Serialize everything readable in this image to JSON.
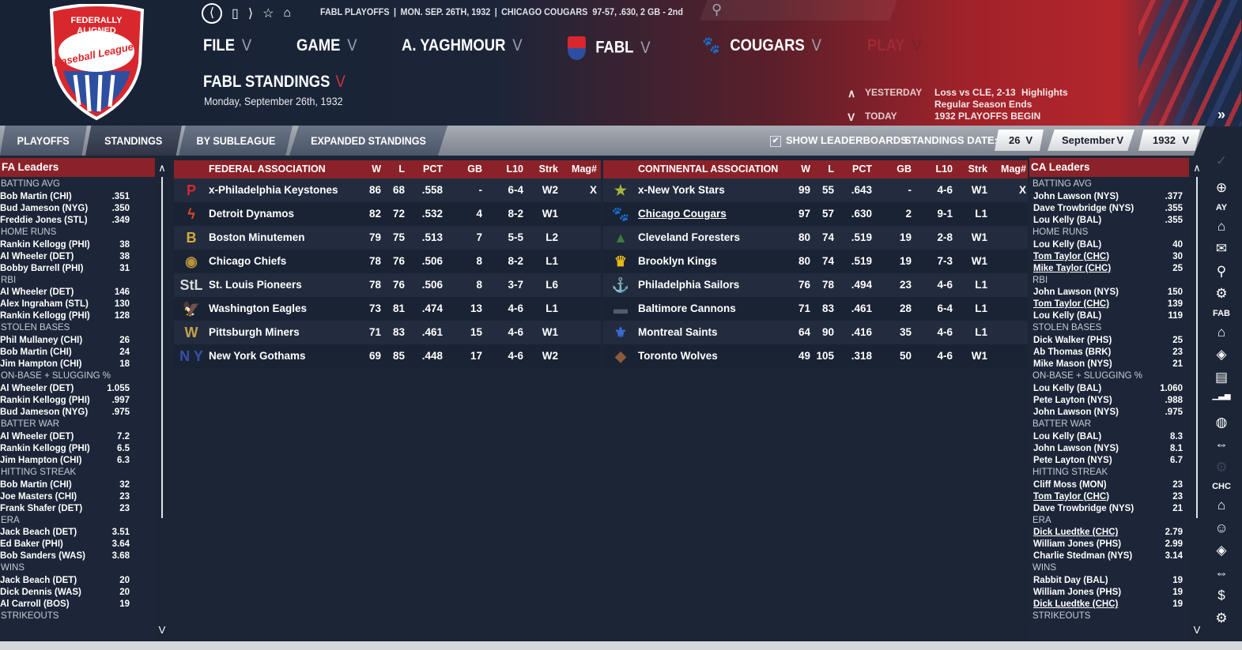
{
  "topbar": {
    "nav_icons": [
      "back-circle-icon",
      "bookmark-icon",
      "forward-icon",
      "star-icon",
      "home-icon"
    ],
    "context": "FABL PLAYOFFS",
    "date": "MON. SEP. 26TH, 1932",
    "team": "CHICAGO COUGARS",
    "record": "97-57, .630, 2 GB - 2nd",
    "search_placeholder": ""
  },
  "logo_text": "Federally Aligned Baseball Leagues",
  "menu": {
    "file": "FILE",
    "game": "GAME",
    "manager": "A. YAGHMOUR",
    "league": "FABL",
    "team": "COUGARS",
    "play": "PLAY",
    "chevron": "V"
  },
  "page": {
    "title": "FABL STANDINGS",
    "date": "Monday, September 26th, 1932"
  },
  "events": {
    "yesterday_label": "YESTERDAY",
    "today_label": "TODAY",
    "yesterday_result": "Loss vs CLE, 2-13",
    "highlights": "Highlights",
    "today_1": "Regular Season Ends",
    "today_2": "1932 PLAYOFFS BEGIN",
    "up": "∧",
    "down": "V"
  },
  "expand_label": "»",
  "tabs": [
    {
      "label": "PLAYOFFS",
      "active": false
    },
    {
      "label": "STANDINGS",
      "active": true
    },
    {
      "label": "BY SUBLEAGUE",
      "active": false
    },
    {
      "label": "EXPANDED STANDINGS",
      "active": false
    }
  ],
  "toolbar": {
    "show_leaderboards": "SHOW LEADERBOARDS",
    "show_leaderboards_checked": true,
    "standings_date_label": "STANDINGS DATE:",
    "day": "26",
    "month": "September",
    "year": "1932"
  },
  "columns": [
    "W",
    "L",
    "PCT",
    "GB",
    "L10",
    "Strk",
    "Mag#"
  ],
  "fa": {
    "title": "FEDERAL ASSOCIATION",
    "teams": [
      {
        "name": "x-Philadelphia Keystones",
        "w": "86",
        "l": "68",
        "pct": ".558",
        "gb": "-",
        "l10": "6-4",
        "strk": "W2",
        "mag": "X",
        "icon": "keystone-p-icon",
        "color": "#d8282e",
        "glyph": "P"
      },
      {
        "name": "Detroit Dynamos",
        "w": "82",
        "l": "72",
        "pct": ".532",
        "gb": "4",
        "l10": "8-2",
        "strk": "W1",
        "mag": "",
        "icon": "lightning-bolt-icon",
        "color": "#e24a22",
        "glyph": "ϟ"
      },
      {
        "name": "Boston Minutemen",
        "w": "79",
        "l": "75",
        "pct": ".513",
        "gb": "7",
        "l10": "5-5",
        "strk": "L2",
        "mag": "",
        "icon": "letter-b-icon",
        "color": "#d8a93a",
        "glyph": "B"
      },
      {
        "name": "Chicago Chiefs",
        "w": "78",
        "l": "76",
        "pct": ".506",
        "gb": "8",
        "l10": "8-2",
        "strk": "L1",
        "mag": "",
        "icon": "chief-head-icon",
        "color": "#b8923a",
        "glyph": "◉"
      },
      {
        "name": "St. Louis Pioneers",
        "w": "78",
        "l": "76",
        "pct": ".506",
        "gb": "8",
        "l10": "3-7",
        "strk": "L6",
        "mag": "",
        "icon": "stl-monogram-icon",
        "color": "#d6d9de",
        "glyph": "StL"
      },
      {
        "name": "Washington Eagles",
        "w": "73",
        "l": "81",
        "pct": ".474",
        "gb": "13",
        "l10": "4-6",
        "strk": "L1",
        "mag": "",
        "icon": "eagle-icon",
        "color": "#8a4a3a",
        "glyph": "🦅"
      },
      {
        "name": "Pittsburgh Miners",
        "w": "71",
        "l": "83",
        "pct": ".461",
        "gb": "15",
        "l10": "4-6",
        "strk": "W1",
        "mag": "",
        "icon": "miners-keystone-icon",
        "color": "#c9a24a",
        "glyph": "W"
      },
      {
        "name": "New York Gothams",
        "w": "69",
        "l": "85",
        "pct": ".448",
        "gb": "17",
        "l10": "4-6",
        "strk": "W2",
        "mag": "",
        "icon": "ny-monogram-icon",
        "color": "#3a4fa8",
        "glyph": "N Y"
      }
    ]
  },
  "ca": {
    "title": "CONTINENTAL ASSOCIATION",
    "teams": [
      {
        "name": "x-New York Stars",
        "w": "99",
        "l": "55",
        "pct": ".643",
        "gb": "-",
        "l10": "4-6",
        "strk": "W1",
        "mag": "X",
        "icon": "star-icon",
        "color": "#a9b33a",
        "glyph": "★"
      },
      {
        "name": "Chicago Cougars",
        "w": "97",
        "l": "57",
        "pct": ".630",
        "gb": "2",
        "l10": "9-1",
        "strk": "L1",
        "mag": "",
        "icon": "paw-icon",
        "color": "#d8a55a",
        "glyph": "🐾",
        "link": true
      },
      {
        "name": "Cleveland Foresters",
        "w": "80",
        "l": "74",
        "pct": ".519",
        "gb": "19",
        "l10": "2-8",
        "strk": "W1",
        "mag": "",
        "icon": "pine-tree-icon",
        "color": "#3f7a3a",
        "glyph": "▲"
      },
      {
        "name": "Brooklyn Kings",
        "w": "80",
        "l": "74",
        "pct": ".519",
        "gb": "19",
        "l10": "7-3",
        "strk": "W1",
        "mag": "",
        "icon": "crown-icon",
        "color": "#e6b818",
        "glyph": "♛"
      },
      {
        "name": "Philadelphia Sailors",
        "w": "76",
        "l": "78",
        "pct": ".494",
        "gb": "23",
        "l10": "4-6",
        "strk": "L1",
        "mag": "",
        "icon": "anchor-icon",
        "color": "#e08a4a",
        "glyph": "⚓"
      },
      {
        "name": "Baltimore Cannons",
        "w": "71",
        "l": "83",
        "pct": ".461",
        "gb": "28",
        "l10": "6-4",
        "strk": "L1",
        "mag": "",
        "icon": "cannon-icon",
        "color": "#555b66",
        "glyph": "▬"
      },
      {
        "name": "Montreal Saints",
        "w": "64",
        "l": "90",
        "pct": ".416",
        "gb": "35",
        "l10": "4-6",
        "strk": "L1",
        "mag": "",
        "icon": "fleur-de-lis-icon",
        "color": "#3b6bd6",
        "glyph": "⚜"
      },
      {
        "name": "Toronto Wolves",
        "w": "49",
        "l": "105",
        "pct": ".318",
        "gb": "50",
        "l10": "4-6",
        "strk": "W1",
        "mag": "",
        "icon": "wolf-head-icon",
        "color": "#8a5a3a",
        "glyph": "◆"
      }
    ]
  },
  "fa_leaders": {
    "title": "FA Leaders",
    "categories": [
      {
        "name": "BATTING AVG",
        "rows": [
          [
            "Bob Martin (CHI)",
            ".351"
          ],
          [
            "Bud Jameson (NYG)",
            ".350"
          ],
          [
            "Freddie Jones (STL)",
            ".349"
          ]
        ]
      },
      {
        "name": "HOME RUNS",
        "rows": [
          [
            "Rankin Kellogg (PHI)",
            "38"
          ],
          [
            "Al Wheeler (DET)",
            "38"
          ],
          [
            "Bobby Barrell (PHI)",
            "31"
          ]
        ]
      },
      {
        "name": "RBI",
        "rows": [
          [
            "Al Wheeler (DET)",
            "146"
          ],
          [
            "Alex Ingraham (STL)",
            "130"
          ],
          [
            "Rankin Kellogg (PHI)",
            "128"
          ]
        ]
      },
      {
        "name": "STOLEN BASES",
        "rows": [
          [
            "Phil Mullaney (CHI)",
            "26"
          ],
          [
            "Bob Martin (CHI)",
            "24"
          ],
          [
            "Jim Hampton (CHI)",
            "18"
          ]
        ]
      },
      {
        "name": "ON-BASE + SLUGGING %",
        "rows": [
          [
            "Al Wheeler (DET)",
            "1.055"
          ],
          [
            "Rankin Kellogg (PHI)",
            ".997"
          ],
          [
            "Bud Jameson (NYG)",
            ".975"
          ]
        ]
      },
      {
        "name": "BATTER WAR",
        "rows": [
          [
            "Al Wheeler (DET)",
            "7.2"
          ],
          [
            "Rankin Kellogg (PHI)",
            "6.5"
          ],
          [
            "Jim Hampton (CHI)",
            "6.3"
          ]
        ]
      },
      {
        "name": "HITTING STREAK",
        "rows": [
          [
            "Bob Martin (CHI)",
            "32"
          ],
          [
            "Joe Masters (CHI)",
            "23"
          ],
          [
            "Frank Shafer (DET)",
            "23"
          ]
        ]
      },
      {
        "name": "ERA",
        "rows": [
          [
            "Jack Beach (DET)",
            "3.51"
          ],
          [
            "Ed Baker (PHI)",
            "3.64"
          ],
          [
            "Bob Sanders (WAS)",
            "3.68"
          ]
        ]
      },
      {
        "name": "WINS",
        "rows": [
          [
            "Jack Beach (DET)",
            "20"
          ],
          [
            "Dick Dennis (WAS)",
            "20"
          ],
          [
            "Al Carroll (BOS)",
            "19"
          ]
        ]
      },
      {
        "name": "STRIKEOUTS",
        "rows": []
      }
    ]
  },
  "ca_leaders": {
    "title": "CA Leaders",
    "categories": [
      {
        "name": "BATTING AVG",
        "rows": [
          [
            "John Lawson (NYS)",
            ".377"
          ],
          [
            "Dave Trowbridge (NYS)",
            ".355"
          ],
          [
            "Lou Kelly (BAL)",
            ".355"
          ]
        ]
      },
      {
        "name": "HOME RUNS",
        "rows": [
          [
            "Lou Kelly (BAL)",
            "40"
          ],
          [
            "Tom Taylor (CHC)",
            "30",
            true
          ],
          [
            "Mike Taylor (CHC)",
            "25",
            true
          ]
        ]
      },
      {
        "name": "RBI",
        "rows": [
          [
            "John Lawson (NYS)",
            "150"
          ],
          [
            "Tom Taylor (CHC)",
            "139",
            true
          ],
          [
            "Lou Kelly (BAL)",
            "119"
          ]
        ]
      },
      {
        "name": "STOLEN BASES",
        "rows": [
          [
            "Dick Walker (PHS)",
            "25"
          ],
          [
            "Ab Thomas (BRK)",
            "23"
          ],
          [
            "Mike Mason (NYS)",
            "21"
          ]
        ]
      },
      {
        "name": "ON-BASE + SLUGGING %",
        "rows": [
          [
            "Lou Kelly (BAL)",
            "1.060"
          ],
          [
            "Pete Layton (NYS)",
            ".988"
          ],
          [
            "John Lawson (NYS)",
            ".975"
          ]
        ]
      },
      {
        "name": "BATTER WAR",
        "rows": [
          [
            "Lou Kelly (BAL)",
            "8.3"
          ],
          [
            "John Lawson (NYS)",
            "8.1"
          ],
          [
            "Pete Layton (NYS)",
            "6.7"
          ]
        ]
      },
      {
        "name": "HITTING STREAK",
        "rows": [
          [
            "Cliff Moss (MON)",
            "23"
          ],
          [
            "Tom Taylor (CHC)",
            "23",
            true
          ],
          [
            "Dave Trowbridge (NYS)",
            "21"
          ]
        ]
      },
      {
        "name": "ERA",
        "rows": [
          [
            "Dick Luedtke (CHC)",
            "2.79",
            true
          ],
          [
            "William Jones (PHS)",
            "2.99"
          ],
          [
            "Charlie Stedman (NYS)",
            "3.14"
          ]
        ]
      },
      {
        "name": "WINS",
        "rows": [
          [
            "Rabbit Day (BAL)",
            "19"
          ],
          [
            "William Jones (PHS)",
            "19"
          ],
          [
            "Dick Luedtke (CHC)",
            "19",
            true
          ]
        ]
      },
      {
        "name": "STRIKEOUTS",
        "rows": []
      }
    ]
  },
  "sidebar": [
    {
      "type": "icon",
      "icon": "check-icon",
      "glyph": "✓"
    },
    {
      "type": "icon",
      "icon": "globe-icon",
      "glyph": "⊕"
    },
    {
      "type": "label",
      "label": "AY"
    },
    {
      "type": "icon",
      "icon": "home-icon",
      "glyph": "⌂"
    },
    {
      "type": "icon",
      "icon": "mail-icon",
      "glyph": "✉"
    },
    {
      "type": "icon",
      "icon": "search-icon",
      "glyph": "⚲"
    },
    {
      "type": "icon",
      "icon": "gear-icon",
      "glyph": "⚙"
    },
    {
      "type": "label",
      "label": "FAB"
    },
    {
      "type": "icon",
      "icon": "home-icon",
      "glyph": "⌂"
    },
    {
      "type": "icon",
      "icon": "diamond-field-icon",
      "glyph": "◈"
    },
    {
      "type": "icon",
      "icon": "news-icon",
      "glyph": "▤"
    },
    {
      "type": "icon",
      "icon": "bar-chart-icon",
      "glyph": "▁▃▅"
    },
    {
      "type": "icon",
      "icon": "baseball-icon",
      "glyph": "◍"
    },
    {
      "type": "icon",
      "icon": "trade-icon",
      "glyph": "⇔"
    },
    {
      "type": "icon",
      "icon": "gear-icon",
      "glyph": "⚙"
    },
    {
      "type": "label",
      "label": "CHC"
    },
    {
      "type": "icon",
      "icon": "home-icon",
      "glyph": "⌂"
    },
    {
      "type": "icon",
      "icon": "player-icon",
      "glyph": "☺"
    },
    {
      "type": "icon",
      "icon": "diamond-field-icon",
      "glyph": "◈"
    },
    {
      "type": "icon",
      "icon": "trade-icon",
      "glyph": "⇔"
    },
    {
      "type": "icon",
      "icon": "dollar-icon",
      "glyph": "$"
    },
    {
      "type": "icon",
      "icon": "gear-icon",
      "glyph": "⚙"
    }
  ],
  "colors": {
    "header_red": "#b3262c",
    "table_header": "#8b2229",
    "background": "#1b2536",
    "play_disabled": "#9e2a33"
  }
}
